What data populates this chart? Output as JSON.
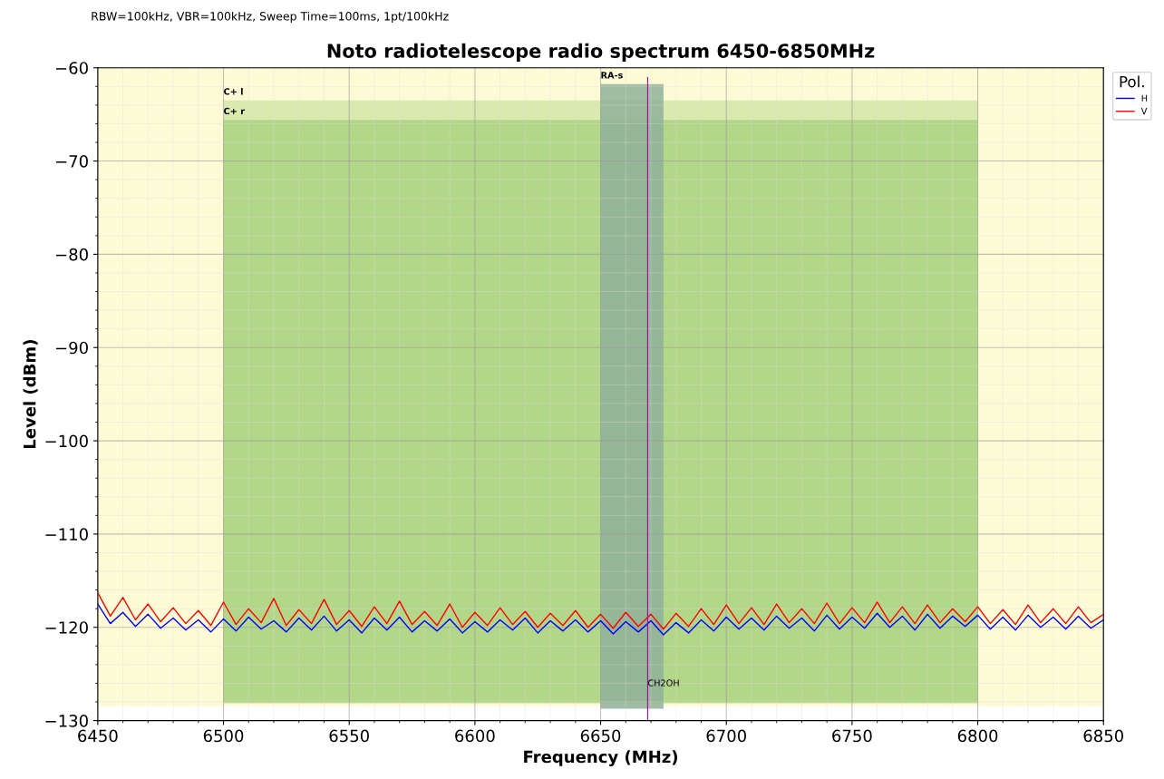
{
  "chart_data": {
    "type": "line",
    "title": "Noto radiotelescope radio spectrum 6450-6850MHz",
    "subtitle": "RBW=100kHz, VBR=100kHz, Sweep Time=100ms, 1pt/100kHz",
    "xlabel": "Frequency (MHz)",
    "ylabel": "Level (dBm)",
    "legend_title": "Pol.",
    "x": [
      6450,
      6455,
      6460,
      6465,
      6470,
      6475,
      6480,
      6485,
      6490,
      6495,
      6500,
      6505,
      6510,
      6515,
      6520,
      6525,
      6530,
      6535,
      6540,
      6545,
      6550,
      6555,
      6560,
      6565,
      6570,
      6575,
      6580,
      6585,
      6590,
      6595,
      6600,
      6605,
      6610,
      6615,
      6620,
      6625,
      6630,
      6635,
      6640,
      6645,
      6650,
      6655,
      6660,
      6665,
      6670,
      6675,
      6680,
      6685,
      6690,
      6695,
      6700,
      6705,
      6710,
      6715,
      6720,
      6725,
      6730,
      6735,
      6740,
      6745,
      6750,
      6755,
      6760,
      6765,
      6770,
      6775,
      6780,
      6785,
      6790,
      6795,
      6800,
      6805,
      6810,
      6815,
      6820,
      6825,
      6830,
      6835,
      6840,
      6845,
      6850
    ],
    "series": [
      {
        "name": "H",
        "color": "#0000ff",
        "values": [
          -117.5,
          -119.6,
          -118.4,
          -119.9,
          -118.6,
          -120.1,
          -119.0,
          -120.3,
          -119.2,
          -120.5,
          -119.1,
          -120.4,
          -118.9,
          -120.2,
          -119.3,
          -120.5,
          -119.0,
          -120.3,
          -118.8,
          -120.4,
          -119.2,
          -120.6,
          -119.0,
          -120.3,
          -118.9,
          -120.5,
          -119.3,
          -120.4,
          -119.1,
          -120.6,
          -119.4,
          -120.5,
          -119.2,
          -120.3,
          -119.0,
          -120.6,
          -119.3,
          -120.4,
          -119.2,
          -120.5,
          -119.3,
          -120.7,
          -119.4,
          -120.5,
          -119.3,
          -120.8,
          -119.5,
          -120.6,
          -119.2,
          -120.4,
          -118.9,
          -120.2,
          -119.0,
          -120.3,
          -118.8,
          -120.1,
          -119.0,
          -120.4,
          -118.7,
          -120.2,
          -118.9,
          -120.1,
          -118.5,
          -120.0,
          -118.8,
          -120.3,
          -118.6,
          -120.1,
          -118.8,
          -119.9,
          -118.7,
          -120.2,
          -118.9,
          -120.3,
          -118.7,
          -120.0,
          -118.9,
          -120.2,
          -118.8,
          -120.1,
          -119.2
        ]
      },
      {
        "name": "V",
        "color": "#ff0000",
        "values": [
          -116.3,
          -118.8,
          -116.8,
          -119.2,
          -117.5,
          -119.4,
          -117.9,
          -119.6,
          -118.2,
          -119.8,
          -117.3,
          -119.7,
          -118.0,
          -119.5,
          -116.9,
          -119.8,
          -118.1,
          -119.6,
          -117.0,
          -119.7,
          -118.2,
          -119.9,
          -117.8,
          -119.6,
          -117.2,
          -119.7,
          -118.3,
          -119.8,
          -117.5,
          -120.0,
          -118.4,
          -119.8,
          -117.9,
          -119.7,
          -118.3,
          -120.0,
          -118.5,
          -119.8,
          -118.2,
          -120.0,
          -118.6,
          -120.1,
          -118.4,
          -119.9,
          -118.6,
          -120.2,
          -118.5,
          -119.9,
          -118.0,
          -119.7,
          -117.6,
          -119.6,
          -117.9,
          -119.7,
          -117.5,
          -119.5,
          -118.0,
          -119.6,
          -117.4,
          -119.6,
          -117.9,
          -119.5,
          -117.3,
          -119.5,
          -117.8,
          -119.6,
          -117.6,
          -119.5,
          -118.0,
          -119.4,
          -117.8,
          -119.6,
          -118.1,
          -119.7,
          -117.6,
          -119.5,
          -118.0,
          -119.6,
          -117.8,
          -119.5,
          -118.6
        ]
      }
    ],
    "xlim": [
      6450,
      6850
    ],
    "xticks": [
      6450,
      6500,
      6550,
      6600,
      6650,
      6700,
      6750,
      6800,
      6850
    ],
    "ylim": [
      -130,
      -60
    ],
    "yticks": [
      {
        "value": -130,
        "label": "−130"
      },
      {
        "value": -120,
        "label": "−120"
      },
      {
        "value": -110,
        "label": "−110"
      },
      {
        "value": -100,
        "label": "−100"
      },
      {
        "value": -90,
        "label": "−90"
      },
      {
        "value": -80,
        "label": "−80"
      },
      {
        "value": -70,
        "label": "−70"
      },
      {
        "value": -60,
        "label": "−60"
      }
    ],
    "bands": [
      {
        "axis": "x",
        "from": 6450,
        "to": 6850,
        "color": "#fdfbd6"
      },
      {
        "axis": "x",
        "from": 6500,
        "to": 6800,
        "label": "C+ l",
        "color": "#d3e6a8"
      },
      {
        "axis": "x",
        "from": 6500,
        "to": 6800,
        "label": "C+ r",
        "color": "#acd382"
      },
      {
        "axis": "x",
        "from": 6650,
        "to": 6675,
        "label": "RA-s",
        "color": "#8fb09a"
      }
    ],
    "ref_lines": [
      {
        "axis": "x",
        "value": 6668.7,
        "label": "CH2OH",
        "color": "#b000b0"
      }
    ],
    "grid": true,
    "legend": "top right",
    "line_style": "solid",
    "marker": "none"
  }
}
